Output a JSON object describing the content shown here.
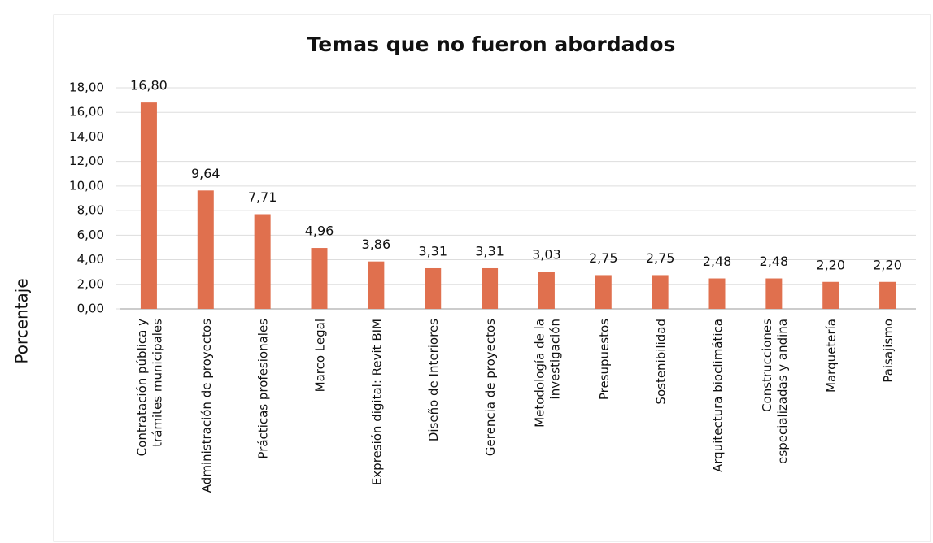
{
  "chart_data": {
    "type": "bar",
    "title": "Temas que no fueron abordados",
    "ylabel": "Porcentaje",
    "categories": [
      "Contratación pública y\ntrámites municipales",
      "Administración de proyectos",
      "Prácticas profesionales",
      "Marco Legal",
      "Expresión digital: Revit BIM",
      "Diseño de Interiores",
      "Gerencia de proyectos",
      "Metodología de la\ninvestigación",
      "Presupuestos",
      "Sostenibilidad",
      "Arquitectura bioclimática",
      "Construcciones\nespecializadas y andina",
      "Marquetería",
      "Paisajismo"
    ],
    "values": [
      16.8,
      9.64,
      7.71,
      4.96,
      3.86,
      3.31,
      3.31,
      3.03,
      2.75,
      2.75,
      2.48,
      2.48,
      2.2,
      2.2
    ],
    "value_labels": [
      "16,80",
      "9,64",
      "7,71",
      "4,96",
      "3,86",
      "3,31",
      "3,31",
      "3,03",
      "2,75",
      "2,75",
      "2,48",
      "2,48",
      "2,20",
      "2,20"
    ],
    "color": "#e0704e",
    "ylim": [
      0,
      18
    ],
    "yticks": [
      {
        "value": 0,
        "label": "0,00"
      },
      {
        "value": 2,
        "label": "2,00"
      },
      {
        "value": 4,
        "label": "4,00"
      },
      {
        "value": 6,
        "label": "6,00"
      },
      {
        "value": 8,
        "label": "8,00"
      },
      {
        "value": 10,
        "label": "10,00"
      },
      {
        "value": 12,
        "label": "12,00"
      },
      {
        "value": 14,
        "label": "14,00"
      },
      {
        "value": 16,
        "label": "16,00"
      },
      {
        "value": 18,
        "label": "18,00"
      }
    ],
    "grid": true
  }
}
